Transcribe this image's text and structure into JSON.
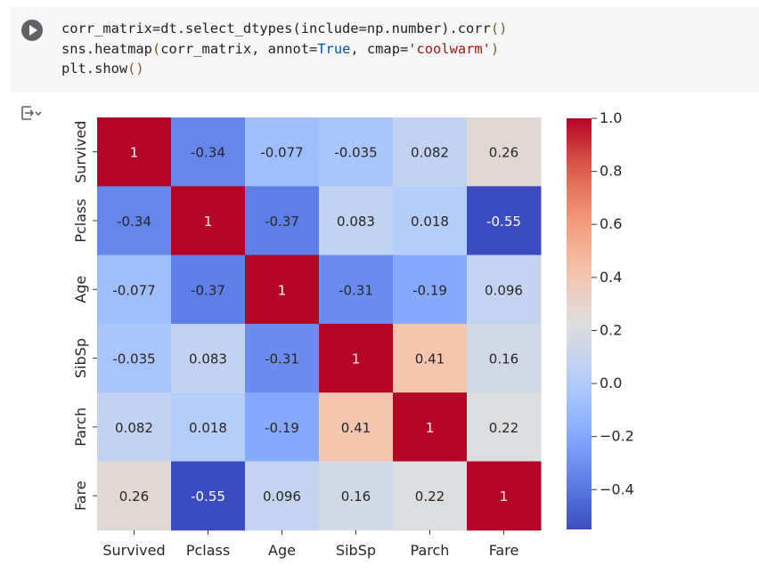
{
  "code": {
    "line1": {
      "a": "corr_matrix=dt.select_dtypes(include=np.number).corr",
      "b": "()"
    },
    "line2": {
      "a": "sns.heatmap",
      "b": "(",
      "c": "corr_matrix, annot=",
      "d": "True",
      "e": ", cmap=",
      "f": "'coolwarm'",
      "g": ")"
    },
    "line3": {
      "a": "plt.show",
      "b": "()"
    }
  },
  "icons": {
    "run": "play-circle-icon",
    "output_toggle": "output-collapse-icon"
  },
  "chart_data": {
    "type": "heatmap",
    "rows": [
      "Survived",
      "Pclass",
      "Age",
      "SibSp",
      "Parch",
      "Fare"
    ],
    "columns": [
      "Survived",
      "Pclass",
      "Age",
      "SibSp",
      "Parch",
      "Fare"
    ],
    "values": [
      [
        1,
        -0.34,
        -0.077,
        -0.035,
        0.082,
        0.26
      ],
      [
        -0.34,
        1,
        -0.37,
        0.083,
        0.018,
        -0.55
      ],
      [
        -0.077,
        -0.37,
        1,
        -0.31,
        -0.19,
        0.096
      ],
      [
        -0.035,
        0.083,
        -0.31,
        1,
        0.41,
        0.16
      ],
      [
        0.082,
        0.018,
        -0.19,
        0.41,
        1,
        0.22
      ],
      [
        0.26,
        -0.55,
        0.096,
        0.16,
        0.22,
        1
      ]
    ],
    "colormap": "coolwarm",
    "vmin": -0.55,
    "vmax": 1.0,
    "colorbar_ticks": [
      1.0,
      0.8,
      0.6,
      0.4,
      0.2,
      0.0,
      -0.2,
      -0.4
    ],
    "colorbar_tick_labels": [
      "1.0",
      "0.8",
      "0.6",
      "0.4",
      "0.2",
      "0.0",
      "−0.2",
      "−0.4"
    ],
    "annotations": true,
    "colors": {
      "low": "#3b4cc0",
      "mid": "#dddddd",
      "high": "#b40426"
    }
  }
}
